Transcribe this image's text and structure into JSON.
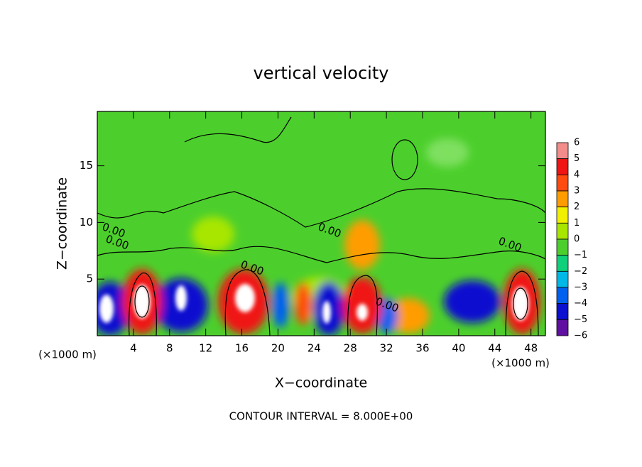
{
  "chart_data": {
    "type": "contour",
    "title": "vertical velocity",
    "x_label": "X−coordinate",
    "y_label": "Z−coordinate",
    "x_unit_label": "(×1000 m)",
    "y_unit_label": "(×1000 m)",
    "footer": "CONTOUR INTERVAL = 8.000E+00",
    "contour_labels": [
      "0.00",
      "0.00",
      "0.00",
      "0.00",
      "0.00",
      "0.00"
    ],
    "xlim": [
      0,
      49.6
    ],
    "ylim": [
      0,
      19.8
    ],
    "xticks": [
      4,
      8,
      12,
      16,
      20,
      24,
      28,
      32,
      36,
      40,
      44,
      48
    ],
    "yticks": [
      5,
      10,
      15
    ],
    "colorbar": {
      "levels": [
        6,
        5,
        4,
        3,
        2,
        1,
        0,
        {
          "value": -1,
          "label": "−1"
        },
        {
          "value": -2,
          "label": "−2"
        },
        {
          "value": -3,
          "label": "−3"
        },
        {
          "value": -4,
          "label": "−4"
        },
        {
          "value": -5,
          "label": "−5"
        },
        {
          "value": -6,
          "label": "−6"
        }
      ],
      "colors": [
        "#f48c8c",
        "#f01414",
        "#ff4a10",
        "#ff9c00",
        "#f0f000",
        "#a8e600",
        "#4ccf2c",
        "#10d07a",
        "#00b8e8",
        "#0060f0",
        "#0c10d0",
        "#6010a0"
      ]
    }
  }
}
